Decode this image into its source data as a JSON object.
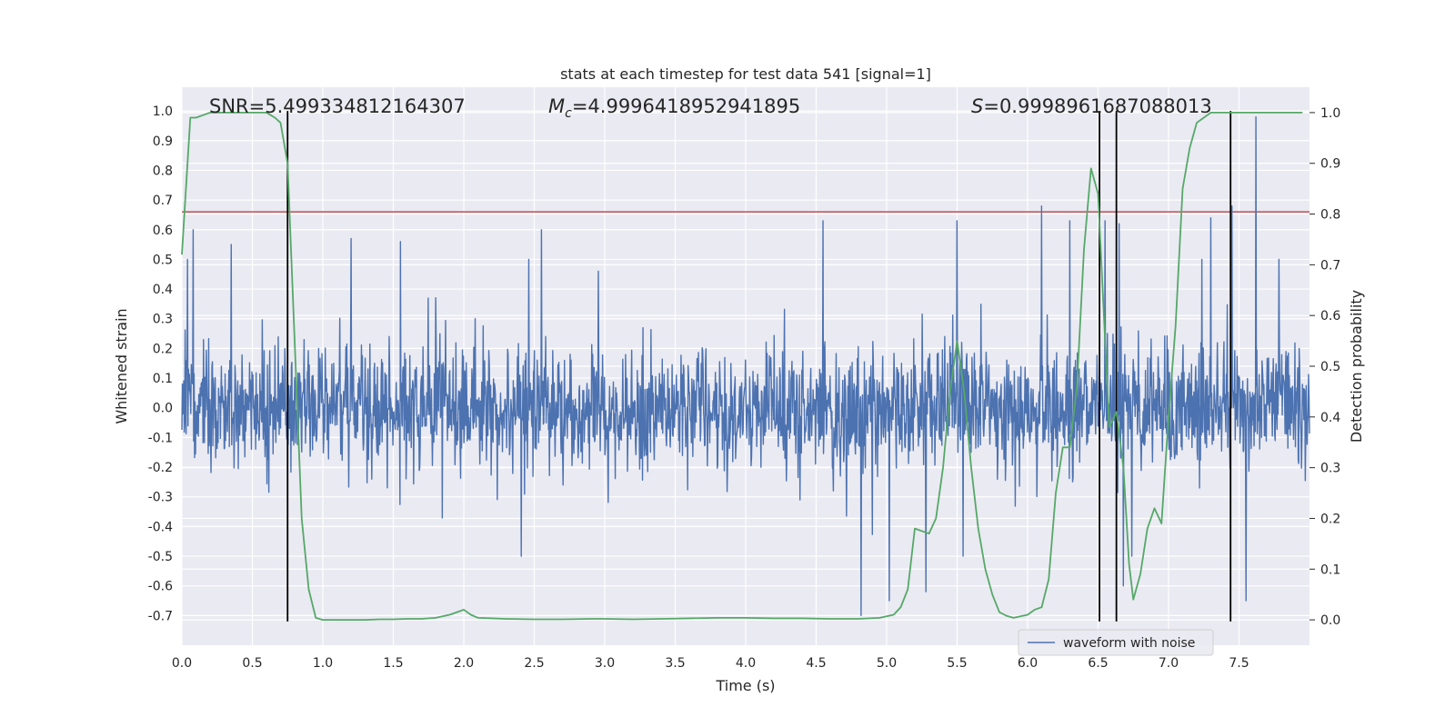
{
  "colors": {
    "background": "#eaeaf2",
    "grid": "#ffffff",
    "waveform": "#4c72b0",
    "probability": "#55a868",
    "threshold": "#c44e52",
    "markers": "#000000"
  },
  "chart_data": {
    "type": "line",
    "title": "stats at each timestep for test data 541 [signal=1]",
    "xlabel": "Time (s)",
    "ylabel": "Whitened strain",
    "ylabel_right": "Detection probability",
    "xlim": [
      0.0,
      8.0
    ],
    "ylim": [
      -0.8,
      1.08
    ],
    "ylim_right": [
      -0.05,
      1.05
    ],
    "xticks": [
      "0.0",
      "0.5",
      "1.0",
      "1.5",
      "2.0",
      "2.5",
      "3.0",
      "3.5",
      "4.0",
      "4.5",
      "5.0",
      "5.5",
      "6.0",
      "6.5",
      "7.0",
      "7.5"
    ],
    "yticks": [
      "-0.7",
      "-0.6",
      "-0.5",
      "-0.4",
      "-0.3",
      "-0.2",
      "-0.1",
      "0.0",
      "0.1",
      "0.2",
      "0.3",
      "0.4",
      "0.5",
      "0.6",
      "0.7",
      "0.8",
      "0.9",
      "1.0"
    ],
    "yticks_right": [
      "0.0",
      "0.1",
      "0.2",
      "0.3",
      "0.4",
      "0.5",
      "0.6",
      "0.7",
      "0.8",
      "0.9",
      "1.0"
    ],
    "threshold_strain": 0.66,
    "marker_times": [
      0.75,
      6.51,
      6.63,
      7.44
    ],
    "marker_range": [
      -0.72,
      1.0
    ],
    "annotations": {
      "snr": "SNR=5.499334812164307",
      "mc_symbol": "M",
      "mc_sub": "c",
      "mc_value": "=4.9996418952941895",
      "s_symbol": "S",
      "s_value": "=0.9998961687088013"
    },
    "legend": {
      "label": "waveform with noise",
      "position": "lower-right"
    },
    "series": [
      {
        "name": "waveform with noise",
        "kind": "noise-envelope",
        "t_start": 0.0,
        "t_end": 8.0,
        "sigma": 0.1,
        "seed": 541,
        "peak_times": [
          0.08,
          0.35,
          1.2,
          1.55,
          2.55,
          4.55,
          5.5,
          6.1,
          6.3,
          6.55,
          6.65,
          7.3,
          7.45,
          7.55,
          7.62
        ],
        "peak_values": [
          0.6,
          0.55,
          0.57,
          0.56,
          0.6,
          0.63,
          0.63,
          0.68,
          0.63,
          0.63,
          0.62,
          0.64,
          0.68,
          0.67,
          0.98
        ],
        "trough_times": [
          4.82,
          5.02,
          5.28,
          6.68,
          7.55
        ],
        "trough_values": [
          -0.7,
          -0.65,
          -0.62,
          -0.6,
          -0.65
        ]
      },
      {
        "name": "Detection probability",
        "kind": "line",
        "axis": "right",
        "x": [
          0.0,
          0.06,
          0.1,
          0.2,
          0.3,
          0.4,
          0.5,
          0.6,
          0.66,
          0.7,
          0.75,
          0.8,
          0.85,
          0.9,
          0.95,
          1.0,
          1.1,
          1.2,
          1.3,
          1.4,
          1.5,
          1.6,
          1.7,
          1.8,
          1.9,
          1.95,
          2.0,
          2.05,
          2.1,
          2.2,
          2.3,
          2.5,
          2.7,
          2.9,
          3.0,
          3.2,
          3.4,
          3.6,
          3.8,
          4.0,
          4.2,
          4.4,
          4.6,
          4.8,
          4.95,
          5.05,
          5.1,
          5.15,
          5.2,
          5.3,
          5.35,
          5.4,
          5.45,
          5.5,
          5.55,
          5.6,
          5.65,
          5.7,
          5.75,
          5.8,
          5.85,
          5.9,
          6.0,
          6.05,
          6.1,
          6.15,
          6.2,
          6.25,
          6.3,
          6.35,
          6.4,
          6.45,
          6.5,
          6.55,
          6.58,
          6.63,
          6.68,
          6.72,
          6.75,
          6.8,
          6.85,
          6.9,
          6.95,
          7.0,
          7.05,
          7.1,
          7.15,
          7.2,
          7.25,
          7.3,
          7.35,
          7.4,
          7.45,
          7.5,
          7.55,
          7.6,
          7.65,
          7.7,
          7.8,
          7.85,
          7.95
        ],
        "y": [
          0.72,
          0.99,
          0.99,
          1.0,
          1.0,
          1.0,
          1.0,
          1.0,
          0.99,
          0.98,
          0.9,
          0.55,
          0.2,
          0.06,
          0.004,
          0.0,
          0.0,
          0.0,
          0.0,
          0.001,
          0.001,
          0.002,
          0.002,
          0.004,
          0.01,
          0.015,
          0.02,
          0.01,
          0.004,
          0.003,
          0.002,
          0.001,
          0.001,
          0.002,
          0.002,
          0.001,
          0.002,
          0.003,
          0.004,
          0.004,
          0.003,
          0.003,
          0.002,
          0.002,
          0.004,
          0.01,
          0.025,
          0.06,
          0.18,
          0.17,
          0.2,
          0.3,
          0.45,
          0.55,
          0.45,
          0.3,
          0.18,
          0.1,
          0.05,
          0.015,
          0.008,
          0.004,
          0.01,
          0.02,
          0.025,
          0.08,
          0.25,
          0.34,
          0.34,
          0.46,
          0.73,
          0.89,
          0.84,
          0.55,
          0.38,
          0.41,
          0.3,
          0.11,
          0.04,
          0.09,
          0.18,
          0.22,
          0.19,
          0.4,
          0.58,
          0.85,
          0.93,
          0.98,
          0.99,
          1.0,
          1.0,
          1.0,
          1.0,
          1.0,
          1.0,
          1.0,
          1.0,
          1.0,
          1.0,
          1.0,
          1.0
        ]
      }
    ]
  }
}
